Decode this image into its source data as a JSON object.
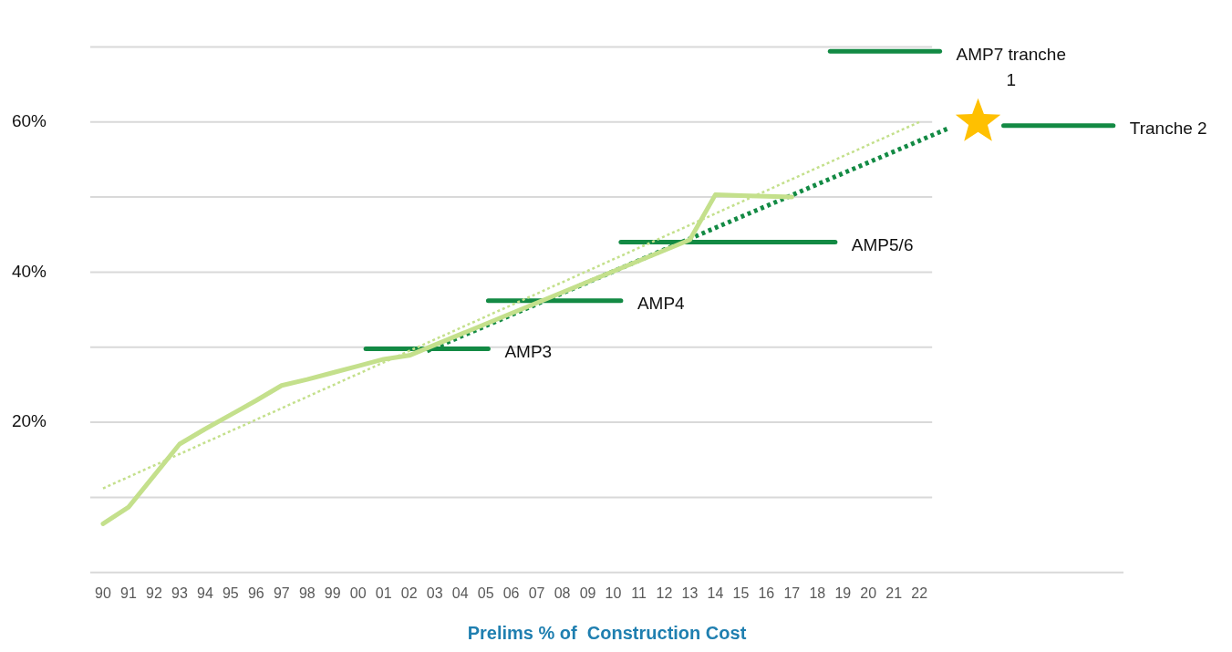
{
  "chart_data": {
    "type": "line",
    "xlabel": "Prelims % of  Construction Cost",
    "xlim": [
      1989.5,
      2030
    ],
    "xticks": [
      {
        "value": 1990,
        "label": "90"
      },
      {
        "value": 1991,
        "label": "91"
      },
      {
        "value": 1992,
        "label": "92"
      },
      {
        "value": 1993,
        "label": "93"
      },
      {
        "value": 1994,
        "label": "94"
      },
      {
        "value": 1995,
        "label": "95"
      },
      {
        "value": 1996,
        "label": "96"
      },
      {
        "value": 1997,
        "label": "97"
      },
      {
        "value": 1998,
        "label": "98"
      },
      {
        "value": 1999,
        "label": "99"
      },
      {
        "value": 2000,
        "label": "00"
      },
      {
        "value": 2001,
        "label": "01"
      },
      {
        "value": 2002,
        "label": "02"
      },
      {
        "value": 2003,
        "label": "03"
      },
      {
        "value": 2004,
        "label": "04"
      },
      {
        "value": 2005,
        "label": "05"
      },
      {
        "value": 2006,
        "label": "06"
      },
      {
        "value": 2007,
        "label": "07"
      },
      {
        "value": 2008,
        "label": "08"
      },
      {
        "value": 2009,
        "label": "09"
      },
      {
        "value": 2010,
        "label": "10"
      },
      {
        "value": 2011,
        "label": "11"
      },
      {
        "value": 2012,
        "label": "12"
      },
      {
        "value": 2013,
        "label": "13"
      },
      {
        "value": 2014,
        "label": "14"
      },
      {
        "value": 2015,
        "label": "15"
      },
      {
        "value": 2016,
        "label": "16"
      },
      {
        "value": 2017,
        "label": "17"
      },
      {
        "value": 2018,
        "label": "18"
      },
      {
        "value": 2019,
        "label": "19"
      },
      {
        "value": 2020,
        "label": "20"
      },
      {
        "value": 2021,
        "label": "21"
      },
      {
        "value": 2022,
        "label": "22"
      }
    ],
    "ylim": [
      0,
      70
    ],
    "yticks": [
      {
        "value": 0,
        "label": null
      },
      {
        "value": 10,
        "label": null
      },
      {
        "value": 20,
        "label": "20%"
      },
      {
        "value": 30,
        "label": null
      },
      {
        "value": 40,
        "label": "40%"
      },
      {
        "value": 50,
        "label": null
      },
      {
        "value": 60,
        "label": "60%"
      },
      {
        "value": 70,
        "label": null
      }
    ],
    "grid": "y",
    "legend": false,
    "marker": "none",
    "series": [
      {
        "color": "#c4e08c",
        "x": [
          1990,
          1991,
          1993,
          1994,
          1995,
          1996,
          1997,
          1998,
          1999,
          2000,
          2001,
          2002,
          2013,
          2014,
          2015,
          2016,
          2017
        ],
        "values": [
          6.5,
          8.7,
          17.1,
          19.1,
          21.0,
          22.9,
          24.9,
          25.7,
          26.6,
          27.5,
          28.4,
          28.9,
          44.3,
          50.3,
          50.2,
          50.1,
          50.0
        ]
      },
      {
        "color": "#c4e08c",
        "line_style": "dotted",
        "x": [
          1990,
          2022
        ],
        "values": [
          11.2,
          60.0
        ]
      },
      {
        "color": "#138a44",
        "line_style": "dotted",
        "x": [
          2002.7,
          2023.1
        ],
        "values": [
          29.5,
          59.1
        ]
      },
      {
        "name": "AMP3",
        "color": "#138a44",
        "x": [
          2000.3,
          2005.1
        ],
        "values": [
          29.8,
          29.8
        ]
      },
      {
        "name": "AMP4",
        "color": "#138a44",
        "x": [
          2005.1,
          2010.3
        ],
        "values": [
          36.2,
          36.2
        ]
      },
      {
        "name": "AMP5/6",
        "color": "#138a44",
        "x": [
          2010.3,
          2018.7
        ],
        "values": [
          44.0,
          44.0
        ]
      },
      {
        "name": "AMP7 tranche 1",
        "color": "#138a44",
        "x": [
          2018.5,
          2022.8
        ],
        "values": [
          69.4,
          69.4
        ]
      },
      {
        "name": "Tranche 2",
        "color": "#138a44",
        "x": [
          2025.3,
          2029.6
        ],
        "values": [
          59.5,
          59.5
        ]
      },
      {
        "type": "scatter",
        "marker": "star",
        "color": "#ffc000",
        "x": [
          2024.3
        ],
        "values": [
          60.0
        ]
      }
    ]
  }
}
